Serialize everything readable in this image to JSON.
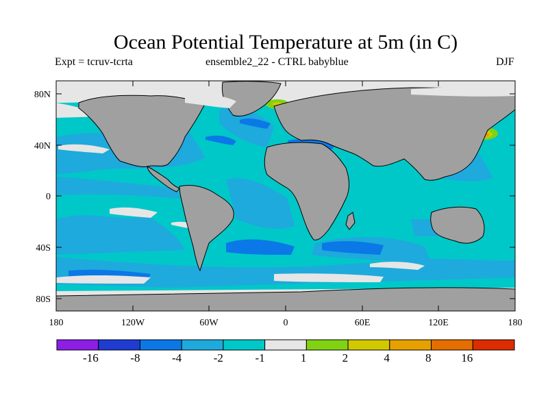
{
  "map": {
    "title": "Ocean Potential Temperature at 5m (in C)",
    "left_label": "Expt = tcruv-tcrta",
    "center_label": "ensemble2_22 - CTRL babyblue",
    "right_label": "DJF",
    "lat_ticks": [
      "80N",
      "40N",
      "0",
      "40S",
      "80S"
    ],
    "lon_ticks": [
      "180",
      "120W",
      "60W",
      "0",
      "60E",
      "120E",
      "180"
    ],
    "land_color": "#a0a0a0",
    "ocean_base_color": "#00c8c8",
    "coastline_color": "#000000"
  },
  "colorbar": {
    "colors": [
      "#8c1ee6",
      "#1e3cd2",
      "#0a78e6",
      "#1eaadc",
      "#00c8c8",
      "#e6e6e6",
      "#82d214",
      "#d2c800",
      "#e6a000",
      "#e66e00",
      "#dc2d00"
    ],
    "labels": [
      "-16",
      "-8",
      "-4",
      "-2",
      "-1",
      "1",
      "2",
      "4",
      "8",
      "16"
    ]
  }
}
